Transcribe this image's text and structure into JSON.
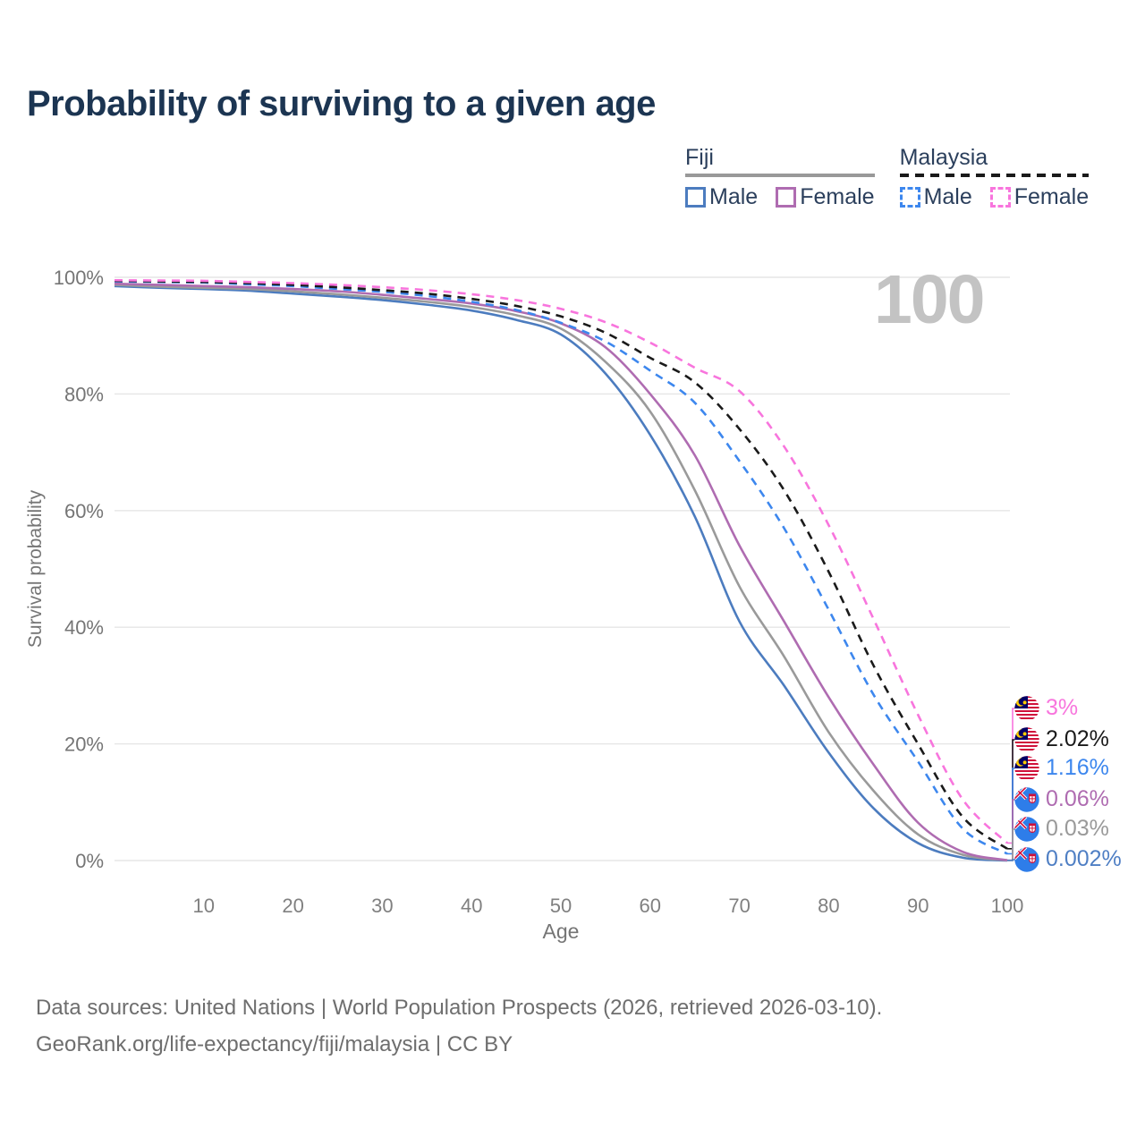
{
  "page": {
    "title": "Probability of surviving to a given age",
    "watermark": "100"
  },
  "legend": {
    "groups": [
      {
        "country": "Fiji",
        "line_style": "solid",
        "line_color": "#999999",
        "items": [
          {
            "label": "Male",
            "color": "#4C7CBF"
          },
          {
            "label": "Female",
            "color": "#AF6CB1"
          }
        ]
      },
      {
        "country": "Malaysia",
        "line_style": "dashed",
        "line_color": "#1a1a1a",
        "items": [
          {
            "label": "Male",
            "color": "#3D87EE"
          },
          {
            "label": "Female",
            "color": "#F875DD"
          }
        ]
      }
    ]
  },
  "chart_data": {
    "type": "line",
    "title": "Probability of surviving to a given age",
    "xlabel": "Age",
    "ylabel": "Survival probability",
    "xlim": [
      0,
      100
    ],
    "ylim": [
      0,
      100
    ],
    "grid": true,
    "legend_position": "top-right",
    "x_ticks": [
      10,
      20,
      30,
      40,
      50,
      60,
      70,
      80,
      90,
      100
    ],
    "y_ticks": [
      {
        "value": 0,
        "label": "0%"
      },
      {
        "value": 20,
        "label": "20%"
      },
      {
        "value": 40,
        "label": "40%"
      },
      {
        "value": 60,
        "label": "60%"
      },
      {
        "value": 80,
        "label": "80%"
      },
      {
        "value": 100,
        "label": "100%"
      }
    ],
    "ages": [
      0,
      5,
      10,
      15,
      20,
      25,
      30,
      35,
      40,
      45,
      50,
      55,
      60,
      65,
      70,
      75,
      80,
      85,
      90,
      95,
      100
    ],
    "series": [
      {
        "name": "Fiji Male",
        "country": "Fiji",
        "sex": "Male",
        "color": "#4C7CBF",
        "dash": "solid",
        "end_label": "0.002%",
        "values": [
          98.5,
          98.2,
          98.0,
          97.7,
          97.2,
          96.7,
          96.1,
          95.3,
          94.3,
          92.7,
          90.2,
          83.5,
          73,
          59,
          41,
          30,
          18.5,
          9,
          3,
          0.5,
          0.002
        ]
      },
      {
        "name": "Fiji Both sexes",
        "country": "Fiji",
        "sex": "Both",
        "color": "#9A9A9A",
        "dash": "solid",
        "end_label": "0.03%",
        "values": [
          98.7,
          98.4,
          98.2,
          98.0,
          97.6,
          97.1,
          96.5,
          95.8,
          94.9,
          93.5,
          91.2,
          85.5,
          77,
          63.5,
          47,
          35,
          22,
          12,
          4.5,
          1,
          0.03
        ]
      },
      {
        "name": "Fiji Female",
        "country": "Fiji",
        "sex": "Female",
        "color": "#AF6CB1",
        "dash": "solid",
        "end_label": "0.06%",
        "values": [
          98.9,
          98.7,
          98.5,
          98.3,
          98.0,
          97.6,
          97.0,
          96.3,
          95.5,
          94.2,
          92.1,
          88,
          80,
          69.5,
          54,
          41,
          28,
          16.5,
          6.5,
          1.5,
          0.06
        ]
      },
      {
        "name": "Malaysia Male",
        "country": "Malaysia",
        "sex": "Male",
        "color": "#3D87EE",
        "dash": "dashed",
        "end_label": "1.16%",
        "values": [
          99.3,
          99.2,
          99.1,
          98.8,
          98.5,
          98.0,
          97.5,
          96.8,
          95.8,
          94.4,
          92.2,
          89,
          84,
          78.5,
          68.5,
          57,
          43,
          28.5,
          17,
          5.5,
          1.16
        ]
      },
      {
        "name": "Malaysia Both sexes",
        "country": "Malaysia",
        "sex": "Both",
        "color": "#1a1a1a",
        "dash": "dashed",
        "end_label": "2.02%",
        "values": [
          99.4,
          99.3,
          99.2,
          99.0,
          98.7,
          98.3,
          97.8,
          97.2,
          96.3,
          95.1,
          93.3,
          90.5,
          86.2,
          82,
          74,
          63.5,
          49.5,
          33.5,
          20,
          7.5,
          2.02
        ]
      },
      {
        "name": "Malaysia Female",
        "country": "Malaysia",
        "sex": "Female",
        "color": "#F875DD",
        "dash": "dashed",
        "end_label": "3%",
        "values": [
          99.5,
          99.45,
          99.4,
          99.2,
          99.0,
          98.7,
          98.3,
          97.8,
          97.1,
          96.1,
          94.6,
          92.3,
          88.8,
          84.5,
          80.5,
          71,
          57.5,
          41.5,
          25,
          10.5,
          3
        ]
      }
    ]
  },
  "end_labels": [
    {
      "flag": "malaysia",
      "series": "Malaysia Female",
      "label": "3%",
      "color": "#F875DD"
    },
    {
      "flag": "malaysia",
      "series": "Malaysia Both sexes",
      "label": "2.02%",
      "color": "#1a1a1a"
    },
    {
      "flag": "malaysia",
      "series": "Malaysia Male",
      "label": "1.16%",
      "color": "#3D87EE"
    },
    {
      "flag": "fiji",
      "series": "Fiji Female",
      "label": "0.06%",
      "color": "#AF6CB1"
    },
    {
      "flag": "fiji",
      "series": "Fiji Both sexes",
      "label": "0.03%",
      "color": "#9A9A9A"
    },
    {
      "flag": "fiji",
      "series": "Fiji Male",
      "label": "0.002%",
      "color": "#4F7FC4"
    }
  ],
  "footer": {
    "line1": "Data sources: United Nations | World Population Prospects (2026, retrieved 2026-03-10).",
    "line2": "GeoRank.org/life-expectancy/fiji/malaysia | CC BY"
  }
}
